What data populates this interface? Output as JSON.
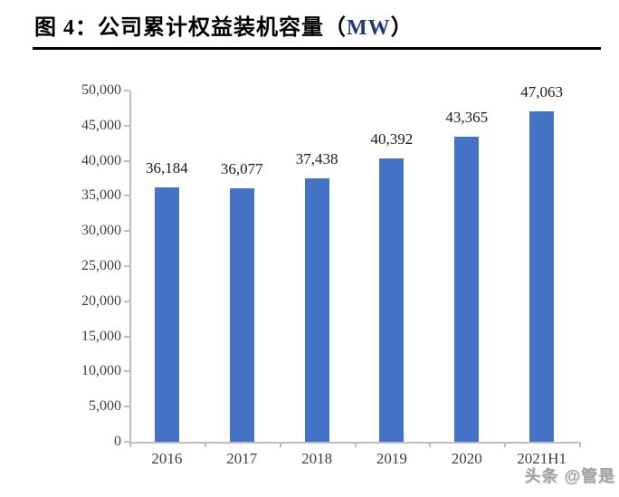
{
  "header": {
    "title_prefix": "图 4：公司累计权益装机容量（",
    "title_unit": "MW",
    "title_suffix": "）"
  },
  "watermark": "头条 @管是",
  "chart_data": {
    "type": "bar",
    "title": "公司累计权益装机容量（MW）",
    "categories": [
      "2016",
      "2017",
      "2018",
      "2019",
      "2020",
      "2021H1"
    ],
    "values": [
      36184,
      36077,
      37438,
      40392,
      43365,
      47063
    ],
    "value_labels": [
      "36,184",
      "36,077",
      "37,438",
      "40,392",
      "43,365",
      "47,063"
    ],
    "xlabel": "",
    "ylabel": "",
    "ylim": [
      0,
      50000
    ],
    "ytick_step": 5000,
    "ytick_labels": [
      "0",
      "5,000",
      "10,000",
      "15,000",
      "20,000",
      "25,000",
      "30,000",
      "35,000",
      "40,000",
      "45,000",
      "50,000"
    ],
    "grid": false,
    "legend": null,
    "bar_color": "#4472C4",
    "axis_color": "#B9BEC9",
    "tick_label_color": "#3F3F3F",
    "value_label_color": "#1A1A1A",
    "title_unit_color": "#1F3B7D"
  }
}
